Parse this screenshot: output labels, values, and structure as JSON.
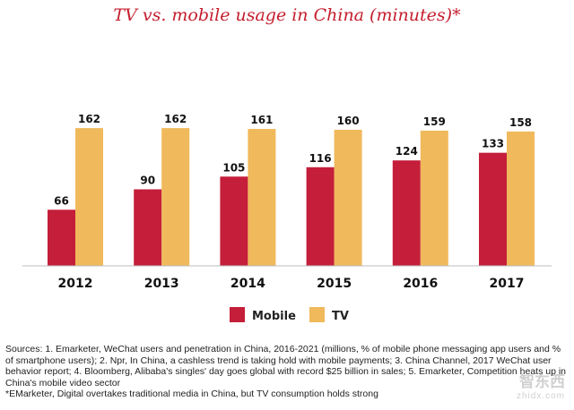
{
  "chart_data": {
    "type": "bar",
    "title": "TV vs. mobile usage in China (minutes)*",
    "categories": [
      "2012",
      "2013",
      "2014",
      "2015",
      "2016",
      "2017"
    ],
    "series": [
      {
        "name": "Mobile",
        "values": [
          66,
          90,
          105,
          116,
          124,
          133
        ],
        "color": "#c41e3a"
      },
      {
        "name": "TV",
        "values": [
          162,
          162,
          161,
          160,
          159,
          158
        ],
        "color": "#f0b95c"
      }
    ],
    "ylim": [
      0,
      175
    ],
    "grid": false,
    "legend": "bottom-center"
  },
  "colors": {
    "title": "#c41e2e",
    "axis_line": "#bdbdbd"
  },
  "sources": {
    "text": "Sources: 1. Emarketer, WeChat users and penetration in China, 2016-2021 (millions, % of mobile phone messaging app users and % of smartphone users); 2. Npr, In China, a cashless trend is taking hold with mobile payments; 3. China Channel, 2017 WeChat user behavior report; 4. Bloomberg, Alibaba's singles' day goes global with record $25 billion in sales; 5. Emarketer, Competition heats up in China's mobile video sector",
    "note": "*EMarketer, Digital overtakes traditional media in China, but TV consumption holds strong"
  },
  "watermark": {
    "top": "智东西",
    "bottom": "zhidx.com"
  }
}
